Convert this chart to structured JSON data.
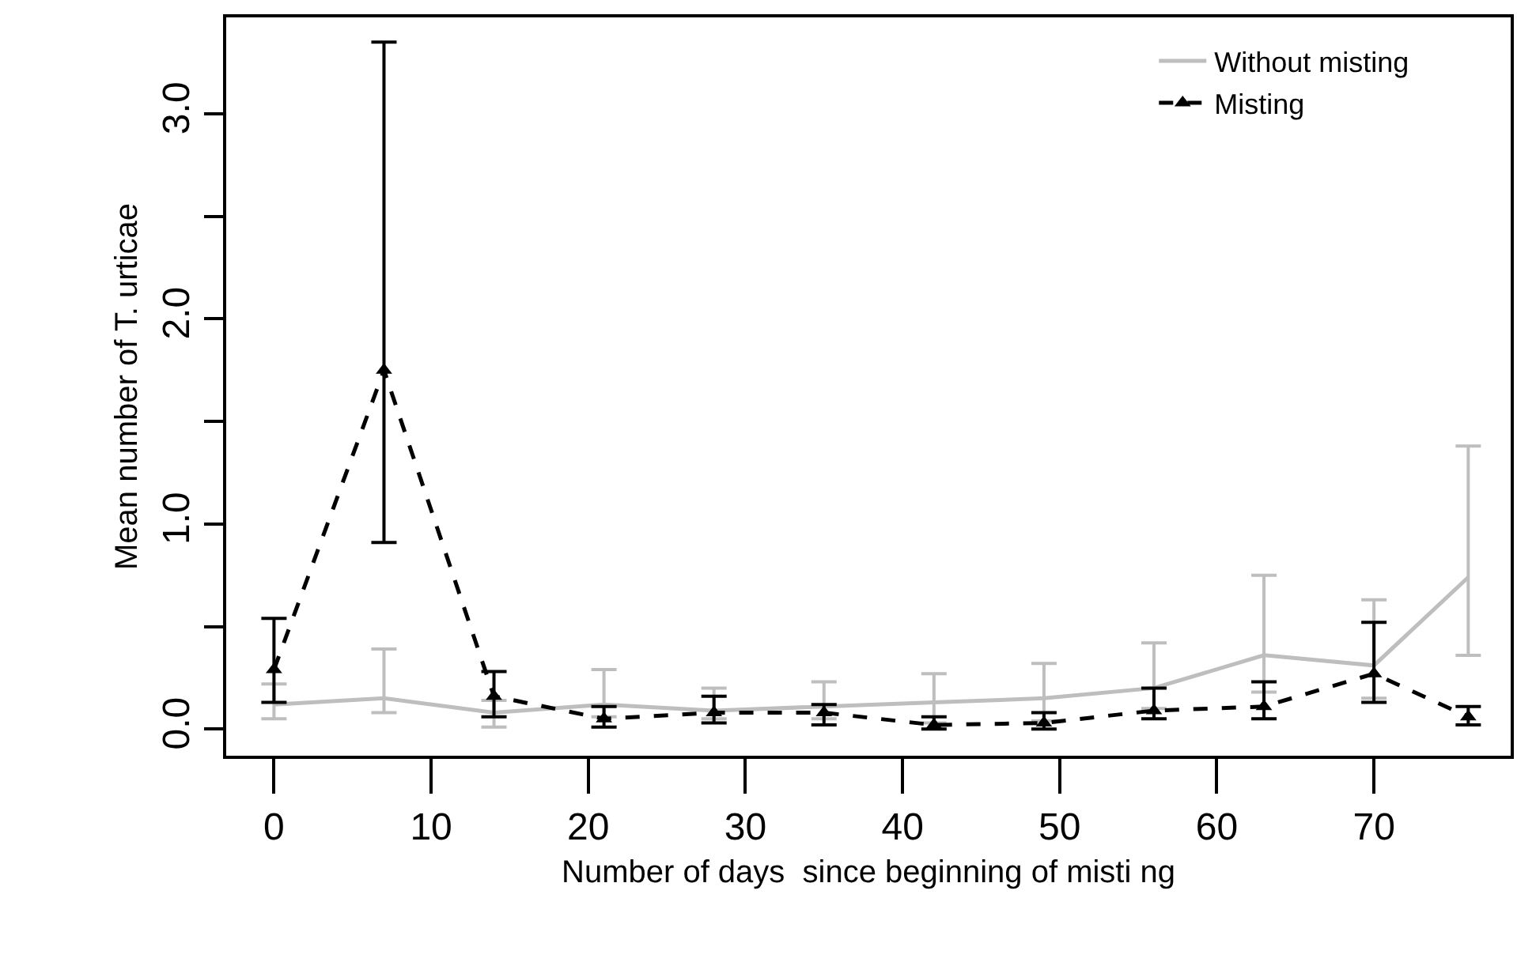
{
  "chart_data": {
    "type": "line",
    "xlabel": "Number of days  since beginning of misti ng",
    "ylabel": "Mean number of T. urticae",
    "x": [
      0,
      7,
      14,
      21,
      28,
      35,
      42,
      49,
      56,
      63,
      70,
      76
    ],
    "series": [
      {
        "name": "Without misting",
        "color": "#bebebe",
        "line_style": "solid",
        "marker": "none",
        "values": [
          0.12,
          0.15,
          0.08,
          0.12,
          0.09,
          0.11,
          0.13,
          0.15,
          0.2,
          0.36,
          0.31,
          0.74
        ],
        "errors": [
          [
            0.05,
            0.22
          ],
          [
            0.08,
            0.39
          ],
          [
            0.01,
            0.14
          ],
          [
            0.06,
            0.29
          ],
          [
            0.05,
            0.2
          ],
          [
            0.05,
            0.23
          ],
          [
            0.03,
            0.27
          ],
          [
            0.04,
            0.32
          ],
          [
            0.1,
            0.42
          ],
          [
            0.18,
            0.75
          ],
          [
            0.15,
            0.63
          ],
          [
            0.36,
            1.38
          ]
        ]
      },
      {
        "name": "Misting",
        "color": "#000000",
        "line_style": "dashed",
        "marker": "triangle",
        "values": [
          0.29,
          1.75,
          0.16,
          0.05,
          0.08,
          0.08,
          0.02,
          0.03,
          0.09,
          0.11,
          0.27,
          0.06
        ],
        "errors": [
          [
            0.13,
            0.54
          ],
          [
            0.91,
            3.35
          ],
          [
            0.06,
            0.28
          ],
          [
            0.01,
            0.11
          ],
          [
            0.03,
            0.16
          ],
          [
            0.02,
            0.12
          ],
          [
            0.0,
            0.06
          ],
          [
            0.0,
            0.08
          ],
          [
            0.05,
            0.2
          ],
          [
            0.05,
            0.23
          ],
          [
            0.13,
            0.52
          ],
          [
            0.02,
            0.11
          ]
        ]
      }
    ],
    "xlim": [
      -3.04,
      78.7
    ],
    "ylim": [
      -0.13,
      3.47
    ],
    "xticks": [
      0,
      10,
      20,
      30,
      40,
      50,
      60,
      70
    ],
    "yticks": [
      {
        "value": 0,
        "label": "0.0"
      },
      {
        "value": 0.5,
        "label": null
      },
      {
        "value": 1,
        "label": "1.0"
      },
      {
        "value": 1.5,
        "label": null
      },
      {
        "value": 2,
        "label": "2.0"
      },
      {
        "value": 2.5,
        "label": null
      },
      {
        "value": 3,
        "label": "3.0"
      }
    ],
    "legend": "top right"
  }
}
